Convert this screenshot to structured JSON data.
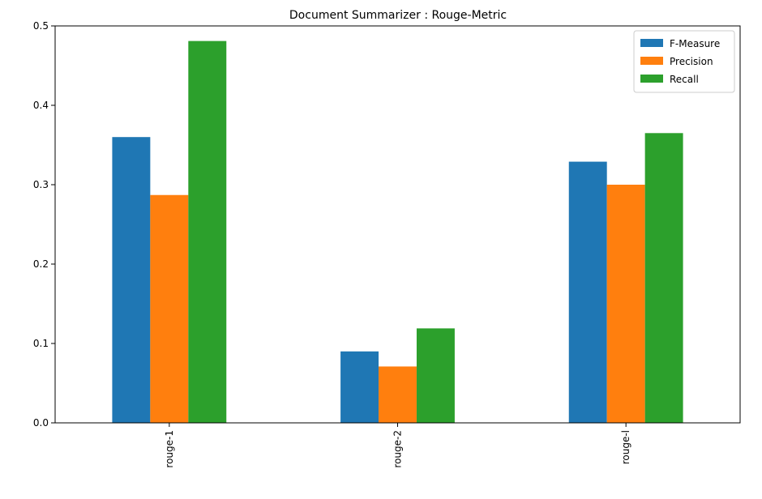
{
  "chart_data": {
    "type": "bar",
    "title": "Document Summarizer : Rouge-Metric",
    "xlabel": "",
    "ylabel": "",
    "categories": [
      "rouge-1",
      "rouge-2",
      "rouge-l"
    ],
    "series": [
      {
        "name": "F-Measure",
        "color": "#1f77b4",
        "values": [
          0.36,
          0.09,
          0.329
        ]
      },
      {
        "name": "Precision",
        "color": "#ff7f0e",
        "values": [
          0.287,
          0.071,
          0.3
        ]
      },
      {
        "name": "Recall",
        "color": "#2ca02c",
        "values": [
          0.481,
          0.119,
          0.365
        ]
      }
    ],
    "ylim": [
      0,
      0.5
    ],
    "yticks": [
      "0.0",
      "0.1",
      "0.2",
      "0.3",
      "0.4",
      "0.5"
    ],
    "grid": false,
    "legend_position": "top-right"
  }
}
